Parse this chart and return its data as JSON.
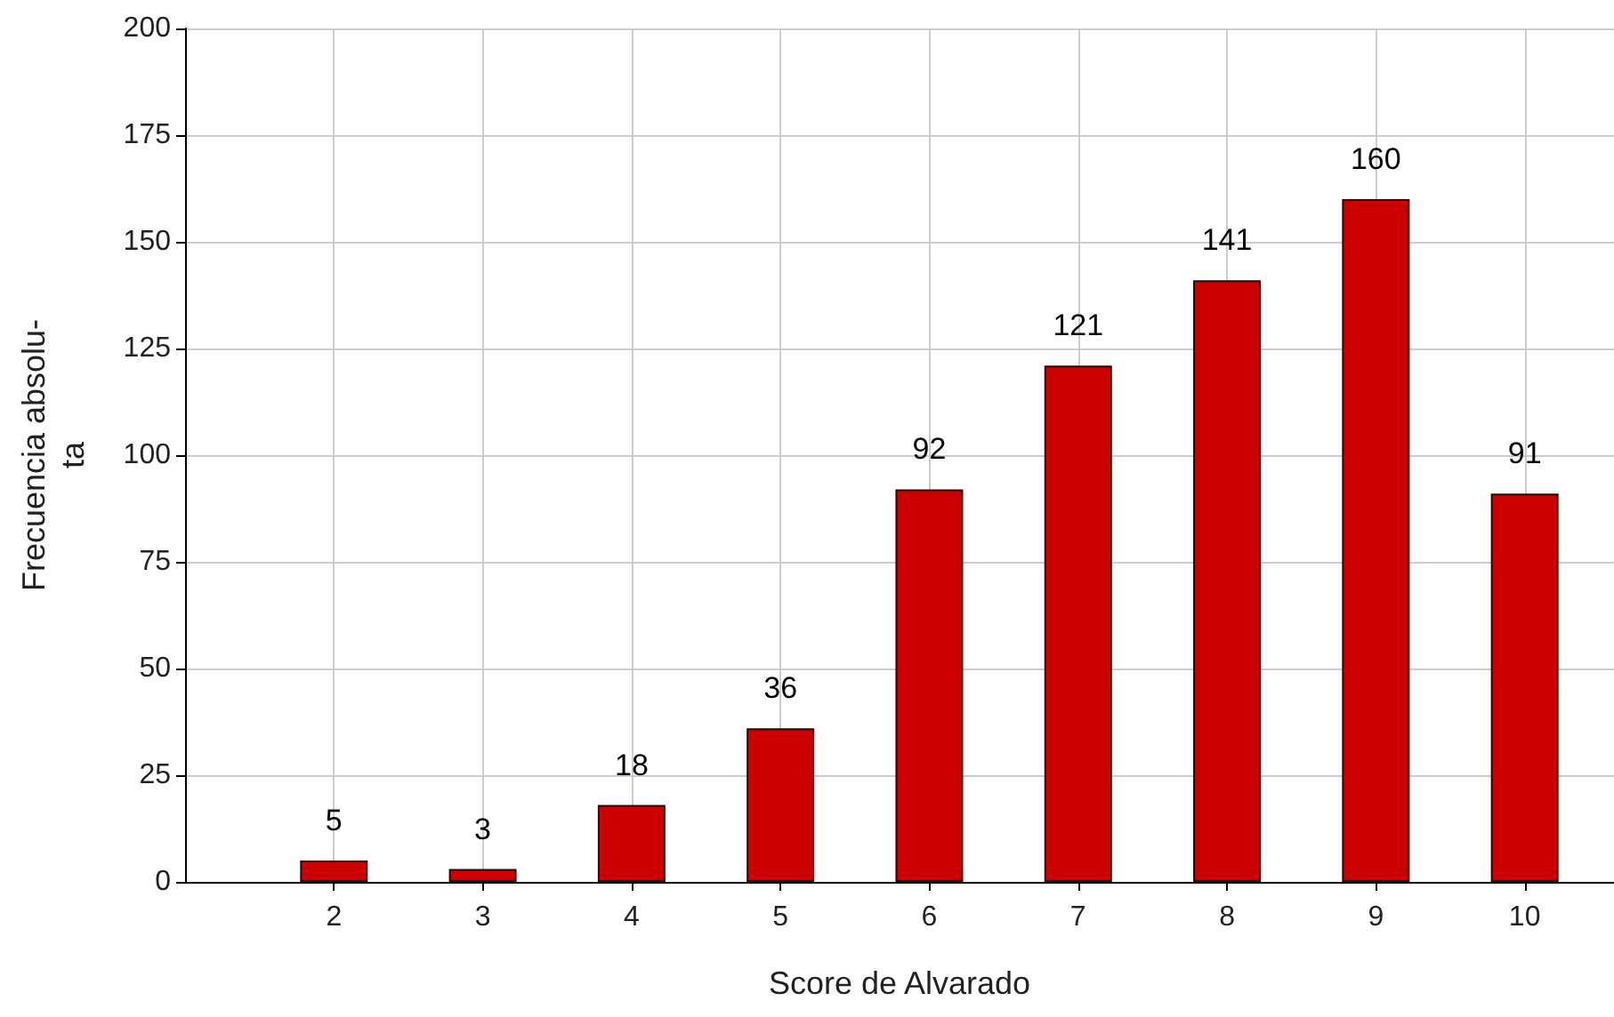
{
  "chart_data": {
    "type": "bar",
    "xlabel": "Score de Alvarado",
    "ylabel": "Frecuencia absolu-\nta",
    "x": [
      2,
      3,
      4,
      5,
      6,
      7,
      8,
      9,
      10
    ],
    "values": [
      5,
      3,
      18,
      36,
      92,
      121,
      141,
      160,
      91
    ],
    "color": "#cc0000",
    "xlim": [
      1,
      10.6
    ],
    "xticks": [
      2,
      3,
      4,
      5,
      6,
      7,
      8,
      9,
      10
    ],
    "ylim": [
      0,
      200
    ],
    "yticks": [
      0,
      25,
      50,
      75,
      100,
      125,
      150,
      175,
      200
    ],
    "grid": true,
    "data_labels": true
  }
}
